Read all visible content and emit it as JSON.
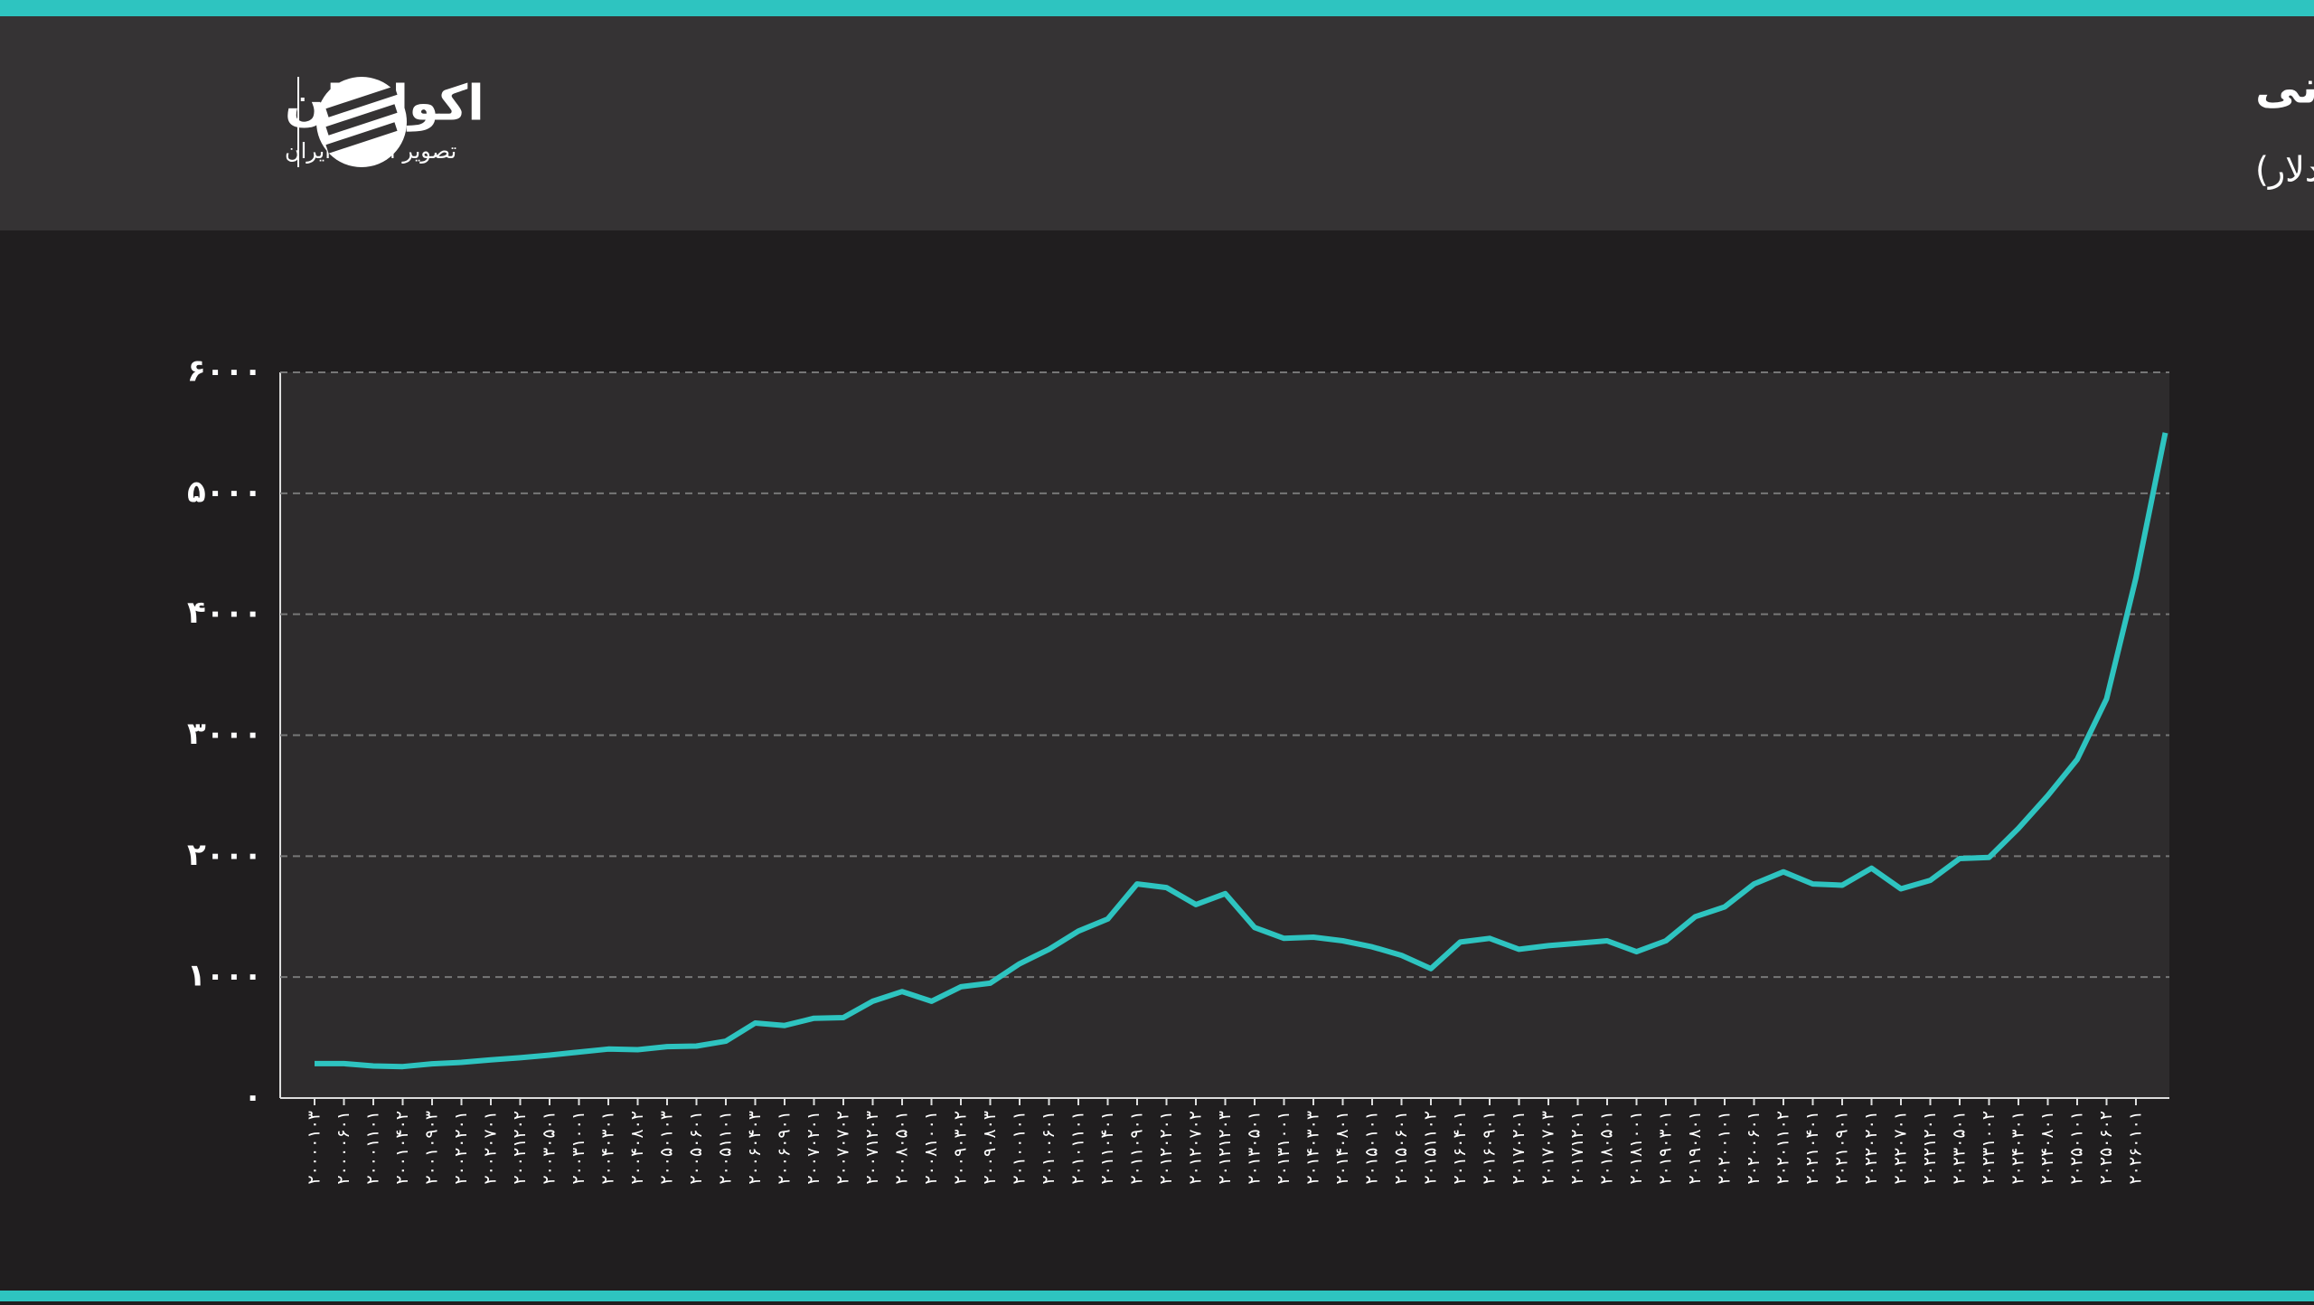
{
  "brand": {
    "name": "اکوایران",
    "tagline": "تصویر اقتصاد ایران"
  },
  "chart_data": {
    "type": "line",
    "title": "قیمت هر اونس طلای جهانی",
    "subtitle": "(واحد: دلار)",
    "categories": [
      "۲۰۰۰۰۱۰۳",
      "۲۰۰۰۰۶۰۱",
      "۲۰۰۰۱۱۰۱",
      "۲۰۰۱۰۴۰۲",
      "۲۰۰۱۰۹۰۳",
      "۲۰۰۲۰۲۰۱",
      "۲۰۰۲۰۷۰۱",
      "۲۰۰۲۱۲۰۲",
      "۲۰۰۳۰۵۰۱",
      "۲۰۰۳۱۰۰۱",
      "۲۰۰۴۰۳۰۱",
      "۲۰۰۴۰۸۰۲",
      "۲۰۰۵۰۱۰۳",
      "۲۰۰۵۰۶۰۱",
      "۲۰۰۵۱۱۰۱",
      "۲۰۰۶۰۴۰۳",
      "۲۰۰۶۰۹۰۱",
      "۲۰۰۷۰۲۰۱",
      "۲۰۰۷۰۷۰۲",
      "۲۰۰۷۱۲۰۳",
      "۲۰۰۸۰۵۰۱",
      "۲۰۰۸۱۰۰۱",
      "۲۰۰۹۰۳۰۲",
      "۲۰۰۹۰۸۰۳",
      "۲۰۱۰۰۱۰۱",
      "۲۰۱۰۰۶۰۱",
      "۲۰۱۰۱۱۰۱",
      "۲۰۱۱۰۴۰۱",
      "۲۰۱۱۰۹۰۱",
      "۲۰۱۲۰۲۰۱",
      "۲۰۱۲۰۷۰۲",
      "۲۰۱۲۱۲۰۳",
      "۲۰۱۳۰۵۰۱",
      "۲۰۱۳۱۰۰۱",
      "۲۰۱۴۰۳۰۳",
      "۲۰۱۴۰۸۰۱",
      "۲۰۱۵۰۱۰۱",
      "۲۰۱۵۰۶۰۱",
      "۲۰۱۵۱۱۰۲",
      "۲۰۱۶۰۴۰۱",
      "۲۰۱۶۰۹۰۱",
      "۲۰۱۷۰۲۰۱",
      "۲۰۱۷۰۷۰۳",
      "۲۰۱۷۱۲۰۱",
      "۲۰۱۸۰۵۰۱",
      "۲۰۱۸۱۰۰۱",
      "۲۰۱۹۰۳۰۱",
      "۲۰۱۹۰۸۰۱",
      "۲۰۲۰۰۱۰۱",
      "۲۰۲۰۰۶۰۱",
      "۲۰۲۰۱۱۰۲",
      "۲۰۲۱۰۴۰۱",
      "۲۰۲۱۰۹۰۱",
      "۲۰۲۲۰۲۰۱",
      "۲۰۲۲۰۷۰۱",
      "۲۰۲۲۱۲۰۱",
      "۲۰۲۳۰۵۰۱",
      "۲۰۲۳۱۰۰۲",
      "۲۰۲۴۰۳۰۱",
      "۲۰۲۴۰۸۰۱",
      "۲۰۲۵۰۱۰۱",
      "۲۰۲۵۰۶۰۲",
      "۲۰۲۶۰۱۰۱",
      null
    ],
    "values": [
      285,
      285,
      265,
      260,
      283,
      295,
      315,
      333,
      355,
      380,
      405,
      400,
      425,
      430,
      470,
      620,
      600,
      660,
      665,
      800,
      880,
      800,
      920,
      950,
      1110,
      1230,
      1380,
      1480,
      1770,
      1740,
      1600,
      1690,
      1410,
      1320,
      1330,
      1300,
      1250,
      1180,
      1070,
      1290,
      1320,
      1230,
      1260,
      1280,
      1300,
      1210,
      1300,
      1500,
      1580,
      1770,
      1870,
      1770,
      1760,
      1900,
      1730,
      1800,
      1980,
      1990,
      2230,
      2500,
      2800,
      3300,
      4300,
      5500
    ],
    "color": "#2ec4c0",
    "ylim": [
      0,
      6000
    ],
    "yticks": [
      {
        "value": 0,
        "label": "۰"
      },
      {
        "value": 1000,
        "label": "۱۰۰۰"
      },
      {
        "value": 2000,
        "label": "۲۰۰۰"
      },
      {
        "value": 3000,
        "label": "۳۰۰۰"
      },
      {
        "value": 4000,
        "label": "۴۰۰۰"
      },
      {
        "value": 5000,
        "label": "۵۰۰۰"
      },
      {
        "value": 6000,
        "label": "۶۰۰۰"
      }
    ],
    "grid": true
  }
}
